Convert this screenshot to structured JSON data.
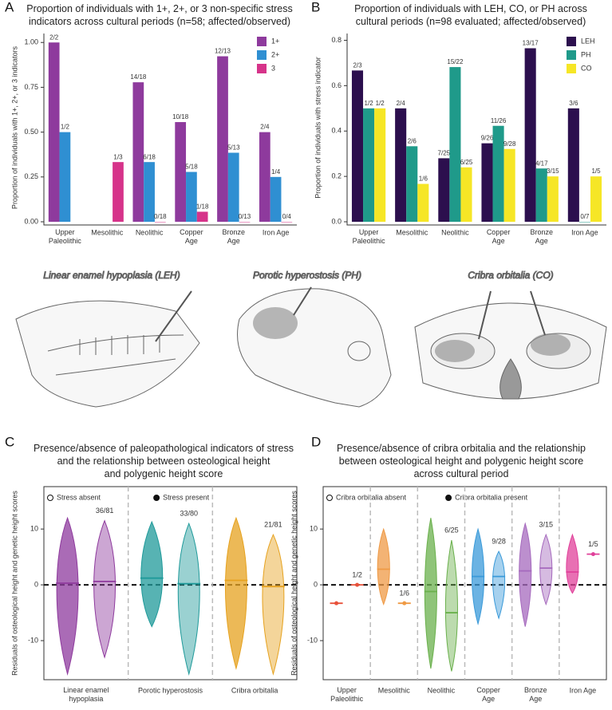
{
  "chart_data": [
    {
      "type": "bar",
      "panel": "A",
      "title": "Proportion of individuals with 1+, 2+, or 3 non-specific stress\nindicators across cultural periods (n=58; affected/observed)",
      "y_label": "Proportion of individuals with 1+, 2+, or 3 indicators",
      "categories": [
        "Upper\nPaleolithic",
        "Mesolithic",
        "Neolithic",
        "Copper\nAge",
        "Bronze\nAge",
        "Iron Age"
      ],
      "ylim": [
        0,
        1.05
      ],
      "yticks": [
        {
          "value": 0,
          "label": "0.00"
        },
        0.25,
        {
          "value": 0.5,
          "label": "0.50"
        },
        0.75,
        {
          "value": 1,
          "label": "1.00"
        }
      ],
      "series": [
        {
          "name": "1+",
          "color": "#8e3a9d",
          "values": [
            1,
            null,
            0.778,
            0.556,
            0.923,
            0.5
          ],
          "value_labels": [
            "2/2",
            null,
            "14/18",
            "10/18",
            "12/13",
            "2/4"
          ]
        },
        {
          "name": "2+",
          "color": "#2f8fd2",
          "values": [
            0.5,
            null,
            0.333,
            0.278,
            0.385,
            0.25
          ],
          "value_labels": [
            "1/2",
            null,
            "6/18",
            "5/18",
            "5/13",
            "1/4"
          ]
        },
        {
          "name": "3",
          "color": "#d6338a",
          "values": [
            null,
            0.333,
            0,
            0.056,
            0,
            0
          ],
          "value_labels": [
            null,
            "1/3",
            "0/18",
            "1/18",
            "0/13",
            "0/4"
          ]
        }
      ]
    },
    {
      "type": "bar",
      "panel": "B",
      "title": "Proportion of individuals with LEH, CO, or PH across\ncultural periods (n=98 evaluated; affected/observed)",
      "y_label": "Proportion of individuals with stress indicator",
      "categories": [
        "Upper\nPaleolithic",
        "Mesolithic",
        "Neolithic",
        "Copper\nAge",
        "Bronze\nAge",
        "Iron Age"
      ],
      "ylim": [
        0,
        0.83
      ],
      "yticks": [
        {
          "value": 0,
          "label": "0.0"
        },
        0.2,
        0.4,
        0.6,
        0.8
      ],
      "series": [
        {
          "name": "LEH",
          "color": "#2c0f4e",
          "values": [
            0.667,
            0.5,
            0.28,
            0.346,
            0.765,
            0.5
          ],
          "value_labels": [
            "2/3",
            "2/4",
            "7/25",
            "9/26",
            "13/17",
            "3/6"
          ]
        },
        {
          "name": "PH",
          "color": "#1f9a8a",
          "values": [
            0.5,
            0.333,
            0.682,
            0.423,
            0.235,
            0
          ],
          "value_labels": [
            "1/2",
            "2/6",
            "15/22",
            "11/26",
            "4/17",
            "0/7"
          ]
        },
        {
          "name": "CO",
          "color": "#f6e626",
          "values": [
            0.5,
            0.167,
            0.24,
            0.321,
            0.2,
            0.2
          ],
          "value_labels": [
            "1/2",
            "1/6",
            "6/25",
            "9/28",
            "3/15",
            "1/5"
          ]
        }
      ]
    },
    {
      "type": "violin",
      "panel": "C",
      "title": "Presence/absence of paleopathological indicators of stress\nand the relationship between osteological height\nand polygenic height score",
      "y_label": "Residuals of osteological height and genetic height scores",
      "legend": [
        "Stress absent",
        "Stress present"
      ],
      "ylim": [
        -17,
        17.6
      ],
      "yticks": [
        -10,
        0,
        10
      ],
      "groups": [
        {
          "category": "Linear enamel\nhypoplasia",
          "color": "#8e3a9d",
          "label": "36/81",
          "absent": {
            "min": -16,
            "max": 12,
            "mean": 0.3
          },
          "present": {
            "min": -13,
            "max": 11.5,
            "mean": 0.6
          }
        },
        {
          "category": "Porotic hyperostosis",
          "color": "#1f9a9a",
          "label": "33/80",
          "absent": {
            "min": -7.5,
            "max": 11.3,
            "mean": 1.2
          },
          "present": {
            "min": -16,
            "max": 11,
            "mean": 0.2
          }
        },
        {
          "category": "Cribra orbitalia",
          "color": "#e6a21f",
          "label": "21/81",
          "absent": {
            "min": -15,
            "max": 12,
            "mean": 0.8
          },
          "present": {
            "min": -16,
            "max": 9,
            "mean": -0.3
          }
        }
      ]
    },
    {
      "type": "violin",
      "panel": "D",
      "title": "Presence/absence of cribra orbitalia and the relationship\nbetween osteological height and polygenic height score\nacross cultural period",
      "y_label": "Residuals of osteological height and genetic height scores",
      "legend": [
        "Cribra orbitalia absent",
        "Cribra orbitalia present"
      ],
      "ylim": [
        -17,
        17.6
      ],
      "yticks": [
        -10,
        0,
        10
      ],
      "groups": [
        {
          "category": "Upper\nPaleolithic",
          "color": "#e8513a",
          "label": "1/2",
          "absent": {
            "min": -3.3,
            "max": -3.3,
            "mean": -3.3
          },
          "present": {
            "min": 0,
            "max": 0,
            "mean": 0
          }
        },
        {
          "category": "Mesolithic",
          "color": "#ef9a45",
          "label": "1/6",
          "absent": {
            "min": -3.5,
            "max": 10,
            "mean": 2.8
          },
          "present": {
            "min": -3.3,
            "max": -3.3,
            "mean": -3.3
          }
        },
        {
          "category": "Neolithic",
          "color": "#6ab04c",
          "label": "6/25",
          "absent": {
            "min": -15,
            "max": 12,
            "mean": -1.2
          },
          "present": {
            "min": -15.5,
            "max": 8,
            "mean": -5
          }
        },
        {
          "category": "Copper\nAge",
          "color": "#3a9ad9",
          "label": "9/28",
          "absent": {
            "min": -7,
            "max": 10,
            "mean": 1.5
          },
          "present": {
            "min": -6,
            "max": 6,
            "mean": 1.5
          }
        },
        {
          "category": "Bronze\nAge",
          "color": "#a569bd",
          "label": "3/15",
          "absent": {
            "min": -7.5,
            "max": 11,
            "mean": 2.5
          },
          "present": {
            "min": -3.5,
            "max": 9,
            "mean": 3
          }
        },
        {
          "category": "Iron Age",
          "color": "#e0409a",
          "label": "1/5",
          "absent": {
            "min": -1.5,
            "max": 9,
            "mean": 2.3
          },
          "present": {
            "min": 5.5,
            "max": 5.5,
            "mean": 5.5
          }
        }
      ]
    }
  ],
  "illustrations": [
    {
      "caption": "Linear enamel hypoplasia (LEH)"
    },
    {
      "caption": "Porotic hyperostosis (PH)"
    },
    {
      "caption": "Cribra orbitalia (CO)"
    }
  ]
}
